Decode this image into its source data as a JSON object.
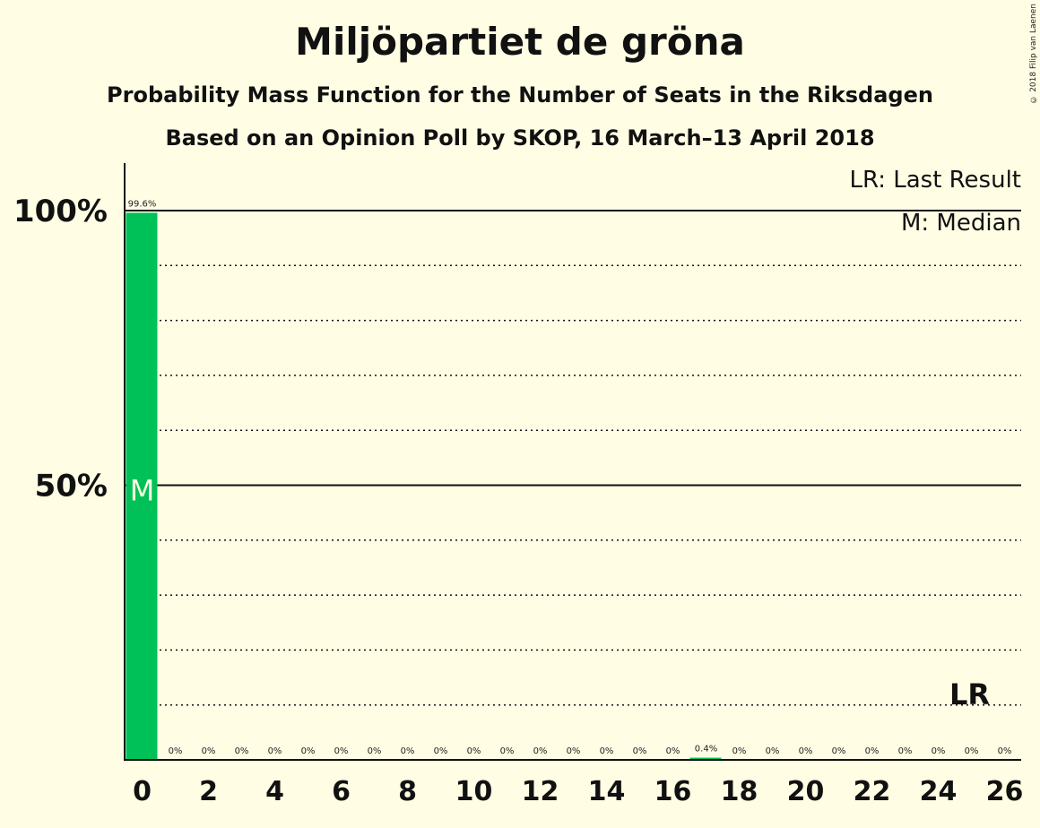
{
  "title": "Miljöpartiet de gröna",
  "subtitle1": "Probability Mass Function for the Number of Seats in the Riksdagen",
  "subtitle2": "Based on an Opinion Poll by SKOP, 16 March–13 April 2018",
  "copyright": "© 2018 Filip van Laenen",
  "legend": {
    "lr": "LR: Last Result",
    "m": "M: Median"
  },
  "colors": {
    "bar": "#00c157",
    "background": "#fffde4",
    "axis": "#111111"
  },
  "chart_data": {
    "type": "bar",
    "categories": [
      0,
      1,
      2,
      3,
      4,
      5,
      6,
      7,
      8,
      9,
      10,
      11,
      12,
      13,
      14,
      15,
      16,
      17,
      18,
      19,
      20,
      21,
      22,
      23,
      24,
      25,
      26
    ],
    "values": [
      99.6,
      0,
      0,
      0,
      0,
      0,
      0,
      0,
      0,
      0,
      0,
      0,
      0,
      0,
      0,
      0,
      0,
      0.4,
      0,
      0,
      0,
      0,
      0,
      0,
      0,
      0,
      0
    ],
    "labels": [
      "99.6%",
      "0%",
      "0%",
      "0%",
      "0%",
      "0%",
      "0%",
      "0%",
      "0%",
      "0%",
      "0%",
      "0%",
      "0%",
      "0%",
      "0%",
      "0%",
      "0%",
      "0.4%",
      "0%",
      "0%",
      "0%",
      "0%",
      "0%",
      "0%",
      "0%",
      "0%",
      "0%"
    ],
    "xticks": [
      0,
      2,
      4,
      6,
      8,
      10,
      12,
      14,
      16,
      18,
      20,
      22,
      24,
      26
    ],
    "yticks": [
      {
        "value": 50,
        "label": "50%"
      },
      {
        "value": 100,
        "label": "100%"
      }
    ],
    "ylim": [
      0,
      108
    ],
    "grid": "dotted every 10%",
    "median": 0,
    "median_label": "M",
    "last_result": 25,
    "last_result_label": "LR"
  }
}
